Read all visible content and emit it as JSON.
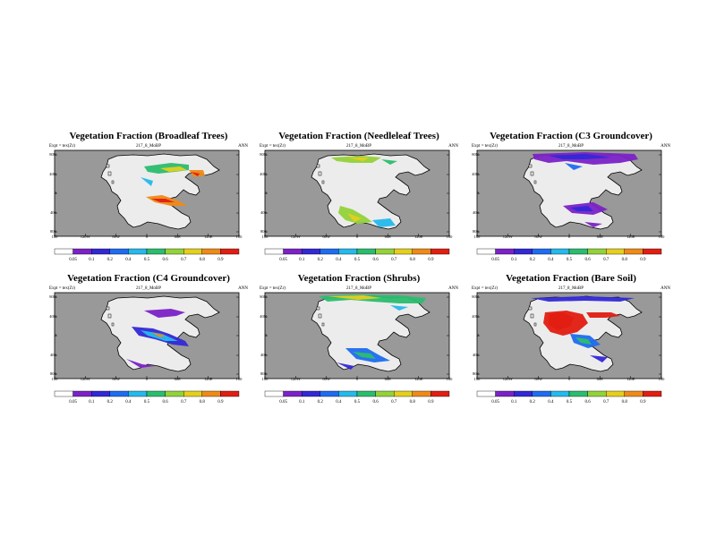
{
  "shared": {
    "experiment_label": "Expt = tex(Zr)",
    "run_label": "217_8_MoBP",
    "season_label": "ANN",
    "lat_ticks": [
      "80N",
      "40N",
      "0",
      "40S",
      "80S"
    ],
    "lon_ticks": [
      "180",
      "120W",
      "60W",
      "0",
      "60E",
      "120E",
      "180"
    ],
    "colorbar_labels": [
      "0.05",
      "0.1",
      "0.2",
      "0.4",
      "0.5",
      "0.6",
      "0.7",
      "0.8",
      "0.9"
    ],
    "colorbar_colors": [
      "#ffffff",
      "#7b22c7",
      "#3328d6",
      "#1f6cf0",
      "#25b9ec",
      "#2bbd6f",
      "#93d23a",
      "#e5cf1d",
      "#ef8a18",
      "#e11e12"
    ]
  },
  "panels": [
    {
      "title": "Vegetation Fraction (Broadleaf Trees)",
      "variable": "Broadleaf Trees"
    },
    {
      "title": "Vegetation Fraction (Needleleaf Trees)",
      "variable": "Needleleaf Trees"
    },
    {
      "title": "Vegetation Fraction (C3 Groundcover)",
      "variable": "C3 Groundcover"
    },
    {
      "title": "Vegetation Fraction (C4 Groundcover)",
      "variable": "C4 Groundcover"
    },
    {
      "title": "Vegetation Fraction (Shrubs)",
      "variable": "Shrubs"
    },
    {
      "title": "Vegetation Fraction (Bare Soil)",
      "variable": "Bare Soil"
    }
  ],
  "colors": {
    "ocean": "#999999",
    "land": "#ececec",
    "coast": "#000000"
  }
}
